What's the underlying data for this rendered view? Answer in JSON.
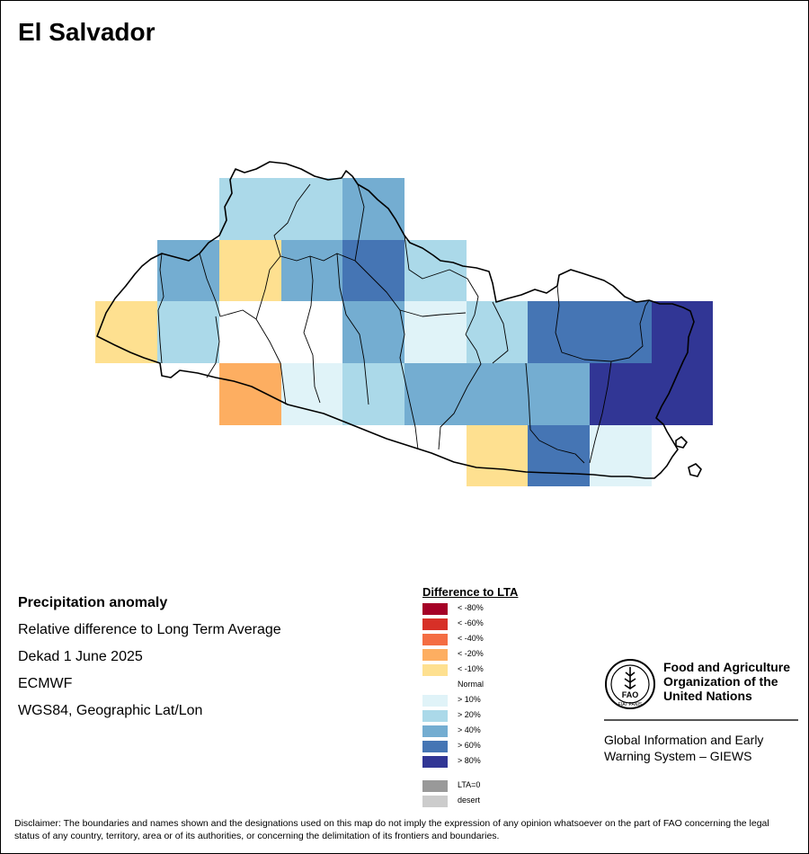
{
  "map": {
    "title": "El Salvador",
    "grid": {
      "col_edges": [
        106,
        175,
        244,
        313,
        381,
        450,
        519,
        587,
        656,
        725,
        793
      ],
      "row_edges": [
        198,
        267,
        335,
        404,
        473,
        541
      ],
      "cells": [
        [
          null,
          null,
          ">20%",
          ">20%",
          ">40%",
          null,
          null,
          null,
          null,
          null
        ],
        [
          null,
          ">40%",
          "<-10%",
          ">40%",
          ">60%",
          ">20%",
          null,
          null,
          null,
          null
        ],
        [
          "<-10%",
          ">20%",
          "Normal",
          "Normal",
          ">40%",
          ">10%",
          ">20%",
          ">60%",
          ">60%",
          ">80%"
        ],
        [
          null,
          "Normal",
          "<-20%",
          ">10%",
          ">20%",
          ">40%",
          ">40%",
          ">40%",
          ">80%",
          ">80%"
        ],
        [
          null,
          null,
          null,
          null,
          null,
          null,
          "<-10%",
          ">60%",
          ">10%",
          null
        ]
      ]
    }
  },
  "info": {
    "heading": "Precipitation anomaly",
    "line1": "Relative difference to Long Term Average",
    "line2": "Dekad 1 June 2025",
    "line3": "ECMWF",
    "line4": "WGS84, Geographic Lat/Lon"
  },
  "legend": {
    "title": "Difference to LTA",
    "items": [
      {
        "label": "< -80%",
        "color": "#a50026"
      },
      {
        "label": "< -60%",
        "color": "#d73027"
      },
      {
        "label": "< -40%",
        "color": "#f46d43"
      },
      {
        "label": "< -20%",
        "color": "#fdae61"
      },
      {
        "label": "< -10%",
        "color": "#fee090"
      },
      {
        "label": "Normal",
        "color": "#ffffff"
      },
      {
        "label": "> 10%",
        "color": "#e0f3f8"
      },
      {
        "label": "> 20%",
        "color": "#abd9e9"
      },
      {
        "label": "> 40%",
        "color": "#74add1"
      },
      {
        "label": "> 60%",
        "color": "#4575b4"
      },
      {
        "label": "> 80%",
        "color": "#313695"
      }
    ],
    "extra": [
      {
        "label": "LTA=0",
        "color": "#999999"
      },
      {
        "label": "desert",
        "color": "#cccccc"
      }
    ]
  },
  "fao": {
    "logo_text": "FAO",
    "logo_motto": "FIAT PANIS",
    "name_line1": "Food and Agriculture",
    "name_line2": "Organization of the",
    "name_line3": "United Nations",
    "giews_line1": "Global Information and Early",
    "giews_line2": "Warning System – GIEWS"
  },
  "disclaimer": "Disclaimer: The boundaries and names shown and the designations used on this map do not imply the expression of any opinion whatsoever on the part of FAO concerning the legal status of any country, territory, area or of its authorities, or concerning the delimitation of its frontiers and boundaries."
}
